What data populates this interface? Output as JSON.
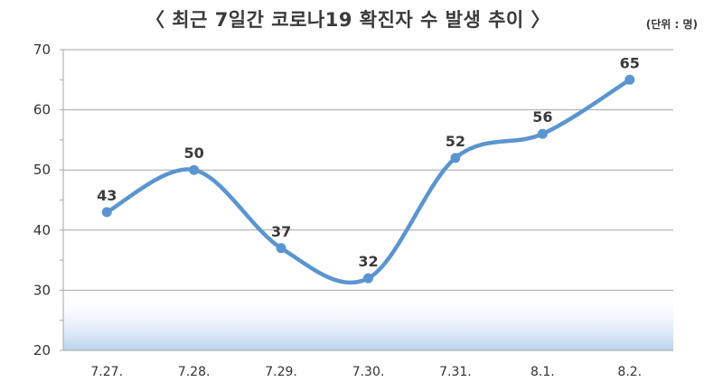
{
  "title": "〈 최근 7일간 코로나19 확진자 수 발생 추이 〉",
  "unit_label": "(단위 : 명)",
  "colors": {
    "line": "#5b95d0",
    "grid": "#a6a6a6",
    "band": "#cfe0f2"
  },
  "chart_data": {
    "type": "line",
    "title": "〈 최근 7일간 코로나19 확진자 수 발생 추이 〉",
    "xlabel": "",
    "ylabel": "",
    "categories": [
      "7.27.",
      "7.28.",
      "7.29.",
      "7.30.",
      "7.31.",
      "8.1.",
      "8.2."
    ],
    "series": [
      {
        "values": [
          43,
          50,
          37,
          32,
          52,
          56,
          65
        ]
      }
    ],
    "ylim": [
      20,
      70
    ],
    "yticks": [
      20,
      30,
      40,
      50,
      60,
      70
    ],
    "grid": true,
    "smooth": true,
    "data_labels": true
  }
}
